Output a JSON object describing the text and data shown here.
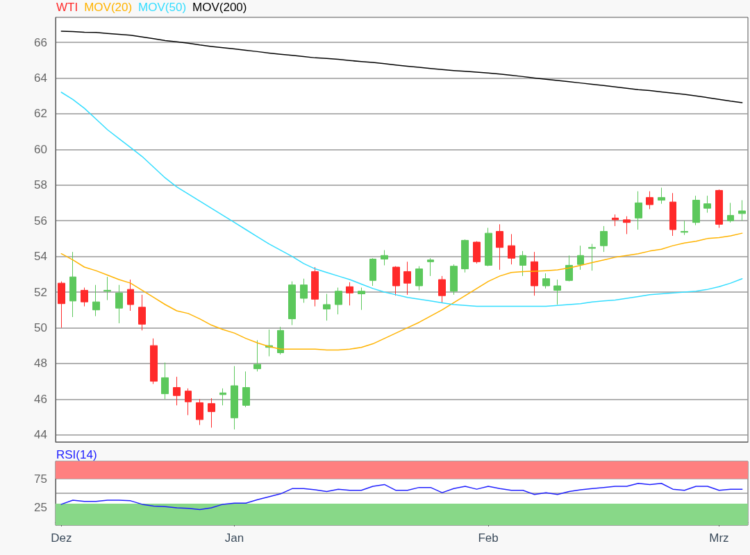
{
  "chart_data": [
    {
      "type": "candlestick",
      "categories": [
        null,
        null,
        null,
        null,
        null,
        null,
        null,
        null,
        null,
        null,
        null,
        null,
        null,
        null,
        null,
        null,
        null,
        null,
        null,
        null,
        null,
        null,
        null,
        null,
        null,
        null,
        null,
        null,
        null,
        null,
        null,
        null,
        null,
        null,
        null,
        null,
        null,
        null,
        null,
        null,
        null,
        null,
        null,
        null,
        null,
        null,
        null,
        null,
        null,
        null,
        null,
        null,
        null,
        null,
        null,
        null,
        null,
        null,
        null,
        null
      ],
      "ylim": [
        43.6,
        67.4
      ],
      "yticks": [
        44,
        46,
        48,
        50,
        52,
        54,
        56,
        58,
        60,
        62,
        64,
        66
      ],
      "grid": "y",
      "legend": "top left",
      "tick_labels": "y",
      "series": [
        {
          "name": "WTI",
          "color": "#ff2a2a",
          "colors": [
            "#ff2a2a",
            "#5cc85c",
            "#ff2a2a",
            "#5cc85c",
            "#5cc85c",
            "#5cc85c",
            "#ff2a2a",
            "#ff2a2a",
            "#ff2a2a",
            "#5cc85c",
            "#ff2a2a",
            "#ff2a2a",
            "#ff2a2a",
            "#ff2a2a",
            "#5cc85c",
            "#5cc85c",
            "#5cc85c",
            "#5cc85c",
            "#5cc85c",
            "#5cc85c",
            "#5cc85c",
            "#5cc85c",
            "#ff2a2a",
            "#5cc85c",
            "#5cc85c",
            "#ff2a2a",
            "#5cc85c",
            "#5cc85c",
            "#5cc85c",
            "#ff2a2a",
            "#ff2a2a",
            "#5cc85c",
            "#5cc85c",
            "#ff2a2a",
            "#5cc85c",
            "#5cc85c",
            "#ff2a2a",
            "#5cc85c",
            "#ff2a2a",
            "#ff2a2a",
            "#5cc85c",
            "#ff2a2a",
            "#5cc85c",
            "#5cc85c",
            "#5cc85c",
            "#5cc85c",
            "#5cc85c",
            "#5cc85c",
            "#ff2a2a",
            "#ff2a2a",
            "#5cc85c",
            "#ff2a2a",
            "#5cc85c",
            "#ff2a2a",
            "#5cc85c",
            "#5cc85c",
            "#5cc85c",
            "#ff2a2a",
            "#5cc85c",
            "#5cc85c"
          ],
          "ohlc": [
            [
              52.5,
              52.6,
              50.0,
              51.35
            ],
            [
              51.5,
              54.25,
              50.6,
              52.85
            ],
            [
              52.1,
              52.25,
              51.2,
              51.45
            ],
            [
              51.0,
              52.4,
              50.65,
              51.45
            ],
            [
              52.05,
              52.85,
              51.55,
              52.1
            ],
            [
              51.1,
              52.4,
              50.25,
              51.95
            ],
            [
              52.15,
              52.7,
              50.95,
              51.3
            ],
            [
              51.15,
              51.85,
              49.85,
              50.2
            ],
            [
              49.0,
              49.4,
              46.85,
              47.0
            ],
            [
              46.3,
              48.05,
              46.0,
              47.2
            ],
            [
              46.65,
              47.25,
              45.65,
              46.2
            ],
            [
              46.45,
              46.6,
              45.1,
              45.85
            ],
            [
              45.8,
              46.0,
              44.55,
              44.85
            ],
            [
              45.75,
              46.05,
              44.4,
              45.3
            ],
            [
              46.25,
              46.6,
              45.65,
              46.35
            ],
            [
              44.95,
              47.85,
              44.3,
              46.75
            ],
            [
              45.65,
              47.55,
              45.55,
              46.65
            ],
            [
              47.7,
              49.3,
              47.55,
              47.95
            ],
            [
              48.9,
              49.9,
              48.4,
              49.0
            ],
            [
              48.6,
              50.05,
              48.5,
              49.85
            ],
            [
              50.5,
              52.6,
              50.15,
              52.4
            ],
            [
              51.65,
              52.75,
              51.4,
              52.4
            ],
            [
              53.15,
              53.4,
              51.2,
              51.6
            ],
            [
              51.05,
              51.9,
              50.4,
              51.3
            ],
            [
              51.3,
              52.25,
              50.75,
              52.05
            ],
            [
              52.3,
              52.55,
              51.25,
              51.95
            ],
            [
              51.9,
              52.25,
              51.0,
              52.05
            ],
            [
              52.65,
              53.9,
              52.35,
              53.85
            ],
            [
              53.85,
              54.35,
              53.5,
              54.05
            ],
            [
              53.4,
              53.45,
              51.8,
              52.35
            ],
            [
              53.15,
              53.7,
              51.85,
              52.5
            ],
            [
              52.35,
              53.45,
              52.1,
              53.3
            ],
            [
              53.7,
              53.9,
              52.9,
              53.8
            ],
            [
              52.7,
              52.9,
              51.4,
              51.8
            ],
            [
              52.05,
              53.55,
              51.85,
              53.45
            ],
            [
              53.3,
              54.95,
              53.1,
              54.9
            ],
            [
              54.8,
              54.85,
              53.6,
              53.7
            ],
            [
              53.5,
              55.6,
              53.45,
              55.3
            ],
            [
              55.4,
              55.8,
              53.25,
              54.5
            ],
            [
              54.6,
              55.25,
              53.55,
              53.9
            ],
            [
              53.5,
              54.3,
              52.9,
              54.05
            ],
            [
              53.7,
              54.25,
              51.8,
              52.35
            ],
            [
              52.35,
              53.05,
              52.2,
              52.75
            ],
            [
              52.1,
              52.7,
              51.3,
              52.35
            ],
            [
              52.65,
              54.05,
              52.6,
              53.5
            ],
            [
              53.55,
              54.6,
              53.25,
              54.05
            ],
            [
              54.45,
              54.7,
              53.2,
              54.5
            ],
            [
              54.6,
              55.7,
              54.25,
              55.4
            ],
            [
              56.15,
              56.35,
              55.7,
              56.05
            ],
            [
              56.05,
              56.25,
              55.25,
              55.9
            ],
            [
              56.15,
              57.65,
              55.5,
              57.0
            ],
            [
              57.3,
              57.65,
              56.65,
              56.9
            ],
            [
              57.15,
              57.85,
              56.95,
              57.3
            ],
            [
              57.05,
              57.55,
              55.15,
              55.5
            ],
            [
              55.35,
              56.0,
              55.2,
              55.4
            ],
            [
              55.9,
              57.4,
              55.75,
              57.15
            ],
            [
              56.7,
              57.4,
              56.45,
              56.95
            ],
            [
              57.7,
              57.75,
              55.6,
              55.8
            ],
            [
              56.0,
              57.0,
              55.9,
              56.3
            ],
            [
              56.4,
              57.15,
              56.0,
              56.55
            ]
          ]
        },
        {
          "name": "MOV(20)",
          "type": "line",
          "color": "#ffb300",
          "values": [
            54.15,
            53.8,
            53.4,
            53.2,
            52.95,
            52.7,
            52.5,
            52.1,
            51.7,
            51.3,
            50.95,
            50.8,
            50.5,
            50.15,
            49.9,
            49.7,
            49.4,
            49.15,
            48.95,
            48.8,
            48.8,
            48.8,
            48.8,
            48.75,
            48.75,
            48.8,
            48.9,
            49.1,
            49.4,
            49.7,
            50.0,
            50.3,
            50.65,
            51.0,
            51.4,
            51.8,
            52.2,
            52.6,
            52.9,
            53.1,
            53.15,
            53.17,
            53.2,
            53.24,
            53.35,
            53.5,
            53.65,
            53.8,
            53.95,
            54.05,
            54.15,
            54.3,
            54.4,
            54.6,
            54.75,
            54.85,
            55.0,
            55.05,
            55.15,
            55.3
          ]
        },
        {
          "name": "MOV(50)",
          "type": "line",
          "color": "#33ddff",
          "values": [
            63.2,
            62.8,
            62.3,
            61.7,
            61.1,
            60.6,
            60.1,
            59.6,
            59.0,
            58.4,
            57.9,
            57.5,
            57.1,
            56.7,
            56.3,
            55.9,
            55.5,
            55.1,
            54.7,
            54.35,
            54.0,
            53.6,
            53.3,
            53.1,
            52.9,
            52.7,
            52.45,
            52.2,
            52.0,
            51.85,
            51.7,
            51.6,
            51.5,
            51.4,
            51.3,
            51.25,
            51.2,
            51.2,
            51.2,
            51.2,
            51.2,
            51.2,
            51.2,
            51.25,
            51.3,
            51.35,
            51.45,
            51.5,
            51.55,
            51.65,
            51.75,
            51.85,
            51.9,
            51.95,
            52.0,
            52.05,
            52.15,
            52.3,
            52.5,
            52.75
          ]
        },
        {
          "name": "MOV(200)",
          "type": "line",
          "color": "#000000",
          "values": [
            66.62,
            66.6,
            66.56,
            66.55,
            66.5,
            66.45,
            66.4,
            66.3,
            66.2,
            66.1,
            66.03,
            65.95,
            65.85,
            65.77,
            65.7,
            65.63,
            65.55,
            65.48,
            65.4,
            65.33,
            65.27,
            65.2,
            65.13,
            65.1,
            65.05,
            64.98,
            64.92,
            64.87,
            64.8,
            64.73,
            64.66,
            64.6,
            64.53,
            64.47,
            64.42,
            64.38,
            64.33,
            64.28,
            64.22,
            64.15,
            64.08,
            64.0,
            63.93,
            63.86,
            63.79,
            63.72,
            63.65,
            63.58,
            63.5,
            63.42,
            63.35,
            63.3,
            63.22,
            63.15,
            63.08,
            63.0,
            62.9,
            62.8,
            62.7,
            62.62
          ]
        }
      ]
    },
    {
      "type": "line",
      "categories": [
        "Dez",
        null,
        null,
        null,
        null,
        null,
        null,
        null,
        null,
        null,
        null,
        null,
        null,
        null,
        null,
        "Jan",
        null,
        null,
        null,
        null,
        null,
        null,
        null,
        null,
        null,
        null,
        null,
        null,
        null,
        null,
        null,
        null,
        null,
        null,
        null,
        null,
        null,
        "Feb",
        null,
        null,
        null,
        null,
        null,
        null,
        null,
        null,
        null,
        null,
        null,
        null,
        null,
        null,
        null,
        null,
        null,
        null,
        null,
        "Mrz",
        null,
        null
      ],
      "ylim": [
        -5,
        105
      ],
      "yticks": [
        25,
        {
          "value": 50,
          "label": null
        },
        75
      ],
      "grid": "y",
      "legend": "top left",
      "bands": [
        {
          "axis": "y",
          "from": 75,
          "to": 105,
          "color": "#ff8080"
        },
        {
          "axis": "y",
          "from": -5,
          "to": 32,
          "color": "#88d888"
        }
      ],
      "series": [
        {
          "name": "RSI(14)",
          "color": "#2020ff",
          "values": [
            31,
            38,
            36,
            36,
            38,
            38,
            37,
            31,
            28,
            27,
            25,
            24,
            22,
            25,
            31,
            33,
            33,
            39,
            44,
            49,
            58,
            58,
            56,
            53,
            57,
            55,
            55,
            62,
            65,
            55,
            55,
            60,
            60,
            51,
            58,
            62,
            57,
            62,
            58,
            55,
            55,
            48,
            51,
            48,
            53,
            56,
            58,
            60,
            62,
            62,
            67,
            65,
            67,
            57,
            55,
            62,
            62,
            55,
            57,
            57
          ]
        }
      ]
    }
  ]
}
